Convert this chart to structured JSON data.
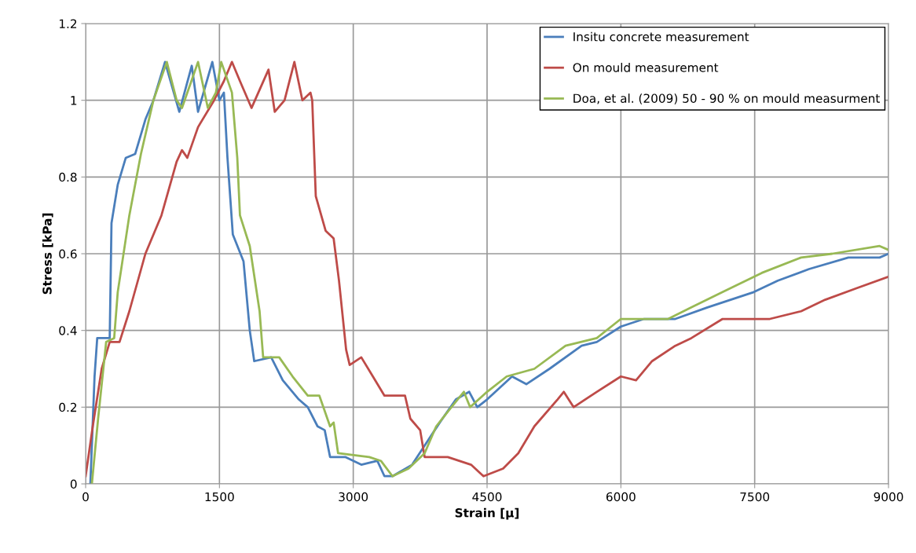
{
  "chart_data": {
    "type": "line",
    "xlabel": "Strain [µ]",
    "ylabel": "Stress [kPa]",
    "xlim": [
      0,
      9000
    ],
    "ylim": [
      0,
      1.2
    ],
    "xticks": [
      0,
      1500,
      3000,
      4500,
      6000,
      7500,
      9000
    ],
    "yticks": [
      0,
      0.2,
      0.4,
      0.6,
      0.8,
      1,
      1.2
    ],
    "grid": true,
    "legend": "top right",
    "line_style": "solid",
    "marker": "none",
    "series": [
      {
        "name": "Insitu concrete measurement",
        "color": "#4a7ebb",
        "x": [
          53,
          100,
          130,
          270,
          290,
          360,
          450,
          555,
          670,
          760,
          890,
          1050,
          1190,
          1260,
          1420,
          1500,
          1550,
          1590,
          1650,
          1770,
          1840,
          1890,
          2080,
          2210,
          2390,
          2490,
          2600,
          2680,
          2740,
          2910,
          3090,
          3270,
          3350,
          3440,
          3660,
          3800,
          3970,
          4150,
          4300,
          4390,
          4500,
          4780,
          4940,
          5200,
          5560,
          5730,
          6000,
          6260,
          6610,
          6970,
          7490,
          7760,
          8110,
          8550,
          8900,
          9000
        ],
        "values": [
          0,
          0.28,
          0.38,
          0.38,
          0.68,
          0.78,
          0.85,
          0.86,
          0.95,
          1.0,
          1.1,
          0.97,
          1.09,
          0.97,
          1.1,
          1.0,
          1.02,
          0.85,
          0.65,
          0.58,
          0.4,
          0.32,
          0.33,
          0.27,
          0.22,
          0.2,
          0.15,
          0.14,
          0.07,
          0.07,
          0.05,
          0.06,
          0.02,
          0.02,
          0.05,
          0.1,
          0.16,
          0.22,
          0.24,
          0.2,
          0.22,
          0.28,
          0.26,
          0.3,
          0.36,
          0.37,
          0.41,
          0.43,
          0.43,
          0.46,
          0.5,
          0.53,
          0.56,
          0.59,
          0.59,
          0.6
        ]
      },
      {
        "name": "On mould measurement",
        "color": "#be4b48",
        "x": [
          0,
          80,
          180,
          270,
          380,
          490,
          670,
          850,
          1020,
          1080,
          1140,
          1260,
          1440,
          1550,
          1640,
          1730,
          1860,
          2050,
          2120,
          2230,
          2340,
          2430,
          2520,
          2540,
          2580,
          2690,
          2780,
          2840,
          2920,
          2960,
          3090,
          3220,
          3350,
          3580,
          3640,
          3750,
          3800,
          4060,
          4320,
          4460,
          4680,
          4850,
          5030,
          5290,
          5360,
          5470,
          5730,
          6000,
          6170,
          6350,
          6610,
          6790,
          7140,
          7670,
          8020,
          8290,
          8640,
          9000
        ],
        "values": [
          0.02,
          0.15,
          0.3,
          0.37,
          0.37,
          0.45,
          0.6,
          0.7,
          0.84,
          0.87,
          0.85,
          0.93,
          1.0,
          1.05,
          1.1,
          1.05,
          0.98,
          1.08,
          0.97,
          1.0,
          1.1,
          1.0,
          1.02,
          1.0,
          0.75,
          0.66,
          0.64,
          0.53,
          0.35,
          0.31,
          0.33,
          0.28,
          0.23,
          0.23,
          0.17,
          0.14,
          0.07,
          0.07,
          0.05,
          0.02,
          0.04,
          0.08,
          0.15,
          0.22,
          0.24,
          0.2,
          0.24,
          0.28,
          0.27,
          0.32,
          0.36,
          0.38,
          0.43,
          0.43,
          0.45,
          0.48,
          0.51,
          0.54
        ]
      },
      {
        "name": "Doa, et al. (2009) 50 - 90 % on mould measurment",
        "color": "#98b954",
        "x": [
          70,
          140,
          230,
          320,
          360,
          490,
          620,
          760,
          910,
          1020,
          1080,
          1260,
          1370,
          1460,
          1520,
          1640,
          1700,
          1730,
          1840,
          1950,
          1990,
          2170,
          2320,
          2490,
          2620,
          2740,
          2780,
          2830,
          3180,
          3310,
          3440,
          3620,
          3800,
          3930,
          4100,
          4240,
          4310,
          4500,
          4720,
          5030,
          5380,
          5730,
          6000,
          6530,
          6790,
          7140,
          7580,
          8020,
          8370,
          8900,
          9000
        ],
        "values": [
          0,
          0.17,
          0.37,
          0.38,
          0.5,
          0.7,
          0.86,
          1.0,
          1.1,
          1.0,
          0.98,
          1.1,
          0.98,
          1.02,
          1.1,
          1.02,
          0.85,
          0.7,
          0.62,
          0.45,
          0.33,
          0.33,
          0.28,
          0.23,
          0.23,
          0.15,
          0.16,
          0.08,
          0.07,
          0.06,
          0.02,
          0.04,
          0.08,
          0.15,
          0.2,
          0.24,
          0.2,
          0.24,
          0.28,
          0.3,
          0.36,
          0.38,
          0.43,
          0.43,
          0.46,
          0.5,
          0.55,
          0.59,
          0.6,
          0.62,
          0.61
        ]
      }
    ]
  }
}
